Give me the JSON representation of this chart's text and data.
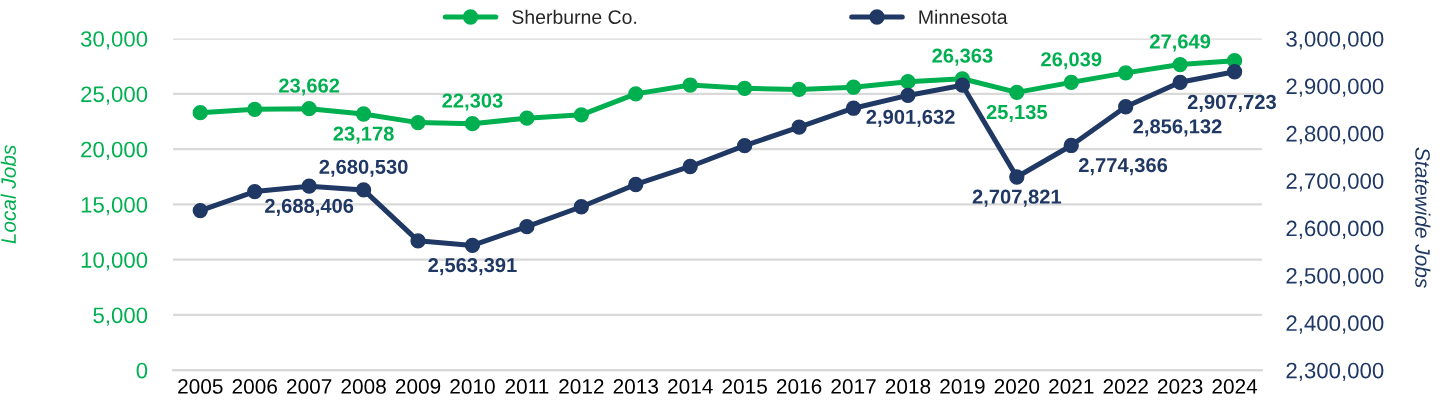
{
  "chart_data": {
    "type": "line",
    "categories": [
      "2005",
      "2006",
      "2007",
      "2008",
      "2009",
      "2010",
      "2011",
      "2012",
      "2013",
      "2014",
      "2015",
      "2016",
      "2017",
      "2018",
      "2019",
      "2020",
      "2021",
      "2022",
      "2023",
      "2024"
    ],
    "ylabel": "Local Jobs",
    "y2label": "Statewide Jobs",
    "ylim": [
      0,
      30000
    ],
    "yticks": [
      0,
      {
        "value": 5000,
        "label": "5,000"
      },
      {
        "value": 10000,
        "label": "10,000"
      },
      {
        "value": 15000,
        "label": "15,000"
      },
      {
        "value": 20000,
        "label": "20,000"
      },
      {
        "value": 25000,
        "label": "25,000"
      },
      {
        "value": 30000,
        "label": "30,000"
      }
    ],
    "y2lim": [
      2300000,
      3000000
    ],
    "y2ticks": [
      {
        "value": 2300000,
        "label": "2,300,000"
      },
      {
        "value": 2400000,
        "label": "2,400,000"
      },
      {
        "value": 2500000,
        "label": "2,500,000"
      },
      {
        "value": 2600000,
        "label": "2,600,000"
      },
      {
        "value": 2700000,
        "label": "2,700,000"
      },
      {
        "value": 2800000,
        "label": "2,800,000"
      },
      {
        "value": 2900000,
        "label": "2,900,000"
      },
      {
        "value": 3000000,
        "label": "3,000,000"
      }
    ],
    "series": [
      {
        "name": "Sherburne Co.",
        "color": "#00b050",
        "values": [
          23300,
          23600,
          23662,
          23178,
          22400,
          22303,
          22800,
          23100,
          25000,
          25800,
          25500,
          25400,
          25600,
          26100,
          26363,
          25135,
          26039,
          26900,
          27649,
          28000
        ],
        "value_labels": [
          null,
          null,
          "23,662",
          "23,178",
          null,
          "22,303",
          null,
          null,
          null,
          null,
          null,
          null,
          null,
          null,
          "26,363",
          "25,135",
          "26,039",
          null,
          "27,649",
          null
        ]
      },
      {
        "name": "Minnesota",
        "color": "#203864",
        "axis": "y2",
        "values": [
          2637000,
          2677000,
          2688406,
          2680530,
          2573000,
          2563391,
          2603000,
          2645000,
          2692000,
          2730000,
          2774000,
          2813000,
          2853000,
          2880000,
          2901632,
          2707821,
          2774366,
          2856132,
          2907723,
          2930000
        ],
        "value_labels": [
          null,
          null,
          "2,688,406",
          "2,680,530",
          null,
          "2,563,391",
          null,
          null,
          null,
          null,
          null,
          null,
          null,
          null,
          "2,901,632",
          "2,707,821",
          "2,774,366",
          "2,856,132",
          "2,907,723",
          null
        ]
      }
    ],
    "grid": "y",
    "legend": "top",
    "marker": "circle",
    "line_style": "solid"
  }
}
